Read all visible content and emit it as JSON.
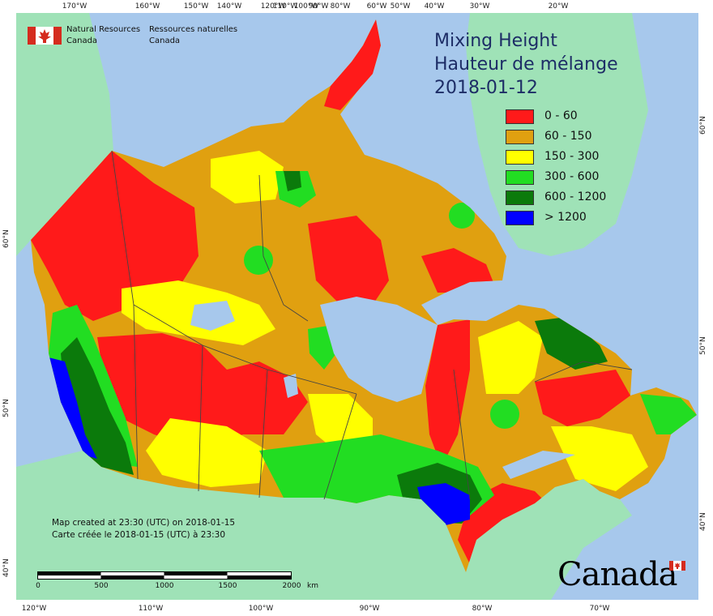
{
  "map": {
    "title_lines": [
      "Mixing Height",
      "Hauteur de mélange",
      "2018-01-12"
    ],
    "agency": {
      "english": [
        "Natural Resources",
        "Canada"
      ],
      "french": [
        "Ressources naturelles",
        "Canada"
      ]
    },
    "legend": [
      {
        "label": "0 - 60",
        "color": "#ff1a1a"
      },
      {
        "label": "60 - 150",
        "color": "#e0a010"
      },
      {
        "label": "150 - 300",
        "color": "#ffff00"
      },
      {
        "label": "300 - 600",
        "color": "#22dd22"
      },
      {
        "label": "600 - 1200",
        "color": "#0b7a0b"
      },
      {
        "label": "> 1200",
        "color": "#0000ff"
      }
    ],
    "credit": [
      "Map created at 23:30 (UTC) on 2018-01-15",
      "Carte créée le 2018-01-15 (UTC) à 23:30"
    ],
    "scale": {
      "ticks": [
        "0",
        "500",
        "1000",
        "1500",
        "2000"
      ],
      "unit": "km"
    },
    "wordmark": "Canada",
    "graticule": {
      "top": [
        "170°W",
        "160°W",
        "150°W",
        "140°W",
        "120°W",
        "110°W",
        "100°W",
        "90°W",
        "80°W",
        "60°W",
        "50°W",
        "40°W",
        "30°W",
        "20°W"
      ],
      "bottom": [
        "120°W",
        "110°W",
        "100°W",
        "90°W",
        "80°W",
        "70°W"
      ],
      "left": [
        "60°N",
        "50°N",
        "40°N"
      ],
      "right": [
        "60°N",
        "50°N",
        "40°N"
      ]
    },
    "colors": {
      "ocean": "#a7c8ec",
      "neighbour_land": "#9fe2b7",
      "border": "#444444"
    }
  }
}
